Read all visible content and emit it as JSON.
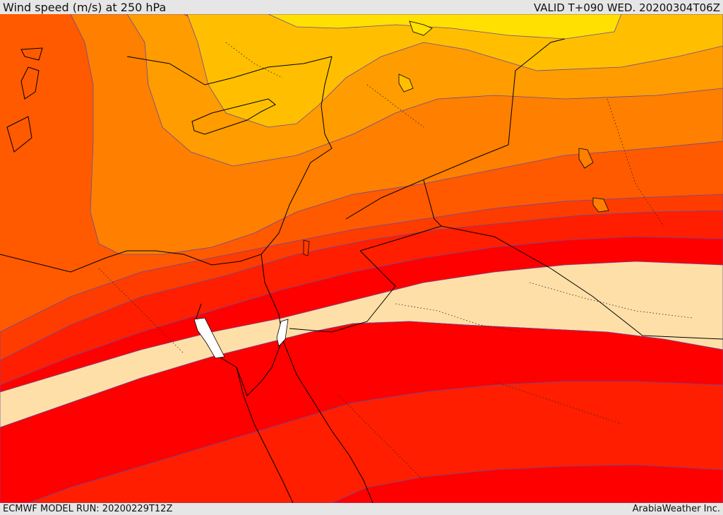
{
  "header": {
    "title": "Wind speed (m/s) at 250 hPa",
    "valid": "VALID T+090 WED. 20200304T06Z"
  },
  "footer": {
    "model_run": "ECMWF MODEL RUN: 20200229T12Z",
    "credit": "ArabiaWeather Inc."
  },
  "palette": {
    "band_1": "#ffe000",
    "band_2": "#ffbf00",
    "band_3": "#ff9c00",
    "band_4": "#ff7f00",
    "band_5": "#ff5a00",
    "band_6": "#ff3c00",
    "band_7": "#ff1e00",
    "band_8": "#ff0000",
    "band_9": "#ffdfa8",
    "contour_line": "#6a4a9a",
    "coastline": "#000000"
  }
}
